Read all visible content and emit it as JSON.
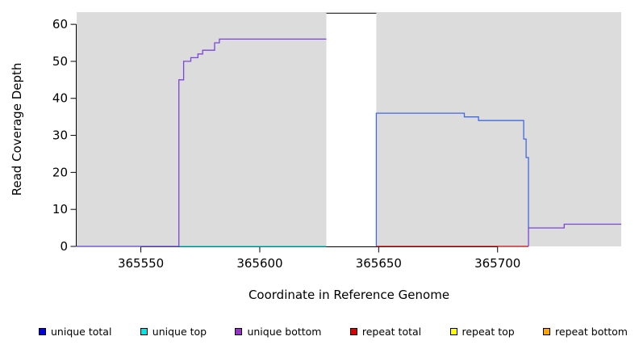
{
  "chart_data": {
    "type": "line",
    "title": "",
    "xlabel": "Coordinate in Reference Genome",
    "ylabel": "Read Coverage Depth",
    "xlim": [
      365523,
      365752
    ],
    "ylim": [
      0,
      60
    ],
    "y_render_max": 63.3,
    "x_ticks": [
      365550,
      365600,
      365650,
      365700
    ],
    "y_ticks": [
      0,
      10,
      20,
      30,
      40,
      50,
      60
    ],
    "grid": false,
    "legend_position": "bottom",
    "background_regions": [
      {
        "name": "covered-region-left",
        "x1": 365523,
        "x2": 365628,
        "color": "#DCDCDC"
      },
      {
        "name": "covered-region-right",
        "x1": 365649,
        "x2": 365752,
        "color": "#DCDCDC"
      }
    ],
    "series": [
      {
        "name": "unique-top-baseline",
        "color": "#00CED1",
        "points": [
          [
            365523,
            0
          ],
          [
            365628,
            0
          ]
        ]
      },
      {
        "name": "repeat-total-baseline",
        "color": "#CC0000",
        "points": [
          [
            365649,
            0
          ],
          [
            365713,
            0
          ]
        ]
      },
      {
        "name": "unique-bottom-left-block",
        "color": "#7B45D8",
        "points": [
          [
            365523,
            0
          ],
          [
            365566,
            0
          ],
          [
            365566,
            45
          ],
          [
            365568,
            45
          ],
          [
            365568,
            50
          ],
          [
            365571,
            50
          ],
          [
            365571,
            51
          ],
          [
            365574,
            51
          ],
          [
            365574,
            52
          ],
          [
            365576,
            52
          ],
          [
            365576,
            53
          ],
          [
            365581,
            53
          ],
          [
            365581,
            55
          ],
          [
            365583,
            55
          ],
          [
            365583,
            56
          ],
          [
            365628,
            56
          ]
        ]
      },
      {
        "name": "unique-total-right-block",
        "color": "#4169E1",
        "points": [
          [
            365649,
            0
          ],
          [
            365649,
            36
          ],
          [
            365686,
            36
          ],
          [
            365686,
            35
          ],
          [
            365692,
            35
          ],
          [
            365692,
            34
          ],
          [
            365711,
            34
          ],
          [
            365711,
            29
          ],
          [
            365712,
            29
          ],
          [
            365712,
            24
          ],
          [
            365713,
            24
          ],
          [
            365713,
            5
          ]
        ]
      },
      {
        "name": "unique-bottom-right-tail",
        "color": "#7B45D8",
        "points": [
          [
            365713,
            0
          ],
          [
            365713,
            5
          ],
          [
            365728,
            5
          ],
          [
            365728,
            6
          ],
          [
            365752,
            6
          ]
        ]
      },
      {
        "name": "off-scale-coverage-clipped",
        "color": "#333333",
        "points": [
          [
            365628,
            63
          ],
          [
            365649,
            63
          ]
        ]
      }
    ]
  },
  "legend": {
    "items": [
      {
        "label": "unique total",
        "color": "#0000E0"
      },
      {
        "label": "unique top",
        "color": "#00E5E5"
      },
      {
        "label": "unique bottom",
        "color": "#9932CC"
      },
      {
        "label": "repeat total",
        "color": "#DD0000"
      },
      {
        "label": "repeat top",
        "color": "#FFFF00"
      },
      {
        "label": "repeat bottom",
        "color": "#FFA500"
      }
    ]
  }
}
